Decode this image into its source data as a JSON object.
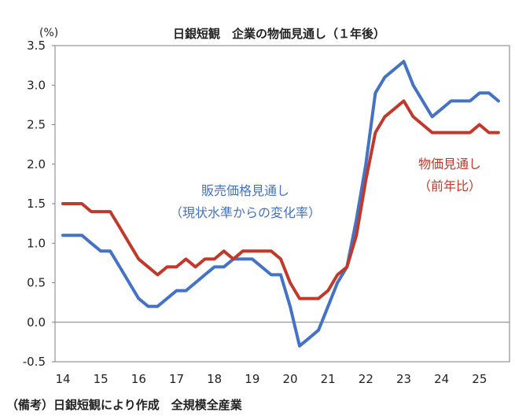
{
  "chart_data": {
    "type": "line",
    "title": "日銀短観　企業の物価見通し（１年後）",
    "unit_label": "(%)",
    "ylim": [
      -0.5,
      3.5
    ],
    "xlim": [
      2014,
      2026
    ],
    "y_ticks": [
      "3.5",
      "3.0",
      "2.5",
      "2.0",
      "1.5",
      "1.0",
      "0.5",
      "0.0",
      "-0.5"
    ],
    "x_ticks": [
      "14",
      "15",
      "16",
      "17",
      "18",
      "19",
      "20",
      "21",
      "22",
      "23",
      "24",
      "25"
    ],
    "grid": false,
    "zero_line": true,
    "series": [
      {
        "name": "販売価格見通し（現状水準からの変化率）",
        "color": "#4472C4",
        "x": [
          "2014Q1",
          "2014Q2",
          "2014Q3",
          "2014Q4",
          "2015Q1",
          "2015Q2",
          "2015Q3",
          "2015Q4",
          "2016Q1",
          "2016Q2",
          "2016Q3",
          "2016Q4",
          "2017Q1",
          "2017Q2",
          "2017Q3",
          "2017Q4",
          "2018Q1",
          "2018Q2",
          "2018Q3",
          "2018Q4",
          "2019Q1",
          "2019Q2",
          "2019Q3",
          "2019Q4",
          "2020Q1",
          "2020Q2",
          "2020Q3",
          "2020Q4",
          "2021Q1",
          "2021Q2",
          "2021Q3",
          "2021Q4",
          "2022Q1",
          "2022Q2",
          "2022Q3",
          "2022Q4",
          "2023Q1",
          "2023Q2",
          "2023Q3",
          "2023Q4",
          "2024Q1",
          "2024Q2",
          "2024Q3",
          "2024Q4",
          "2025Q1",
          "2025Q2",
          "2025Q3"
        ],
        "values": [
          1.1,
          1.1,
          1.1,
          1.0,
          0.9,
          0.9,
          0.7,
          0.5,
          0.3,
          0.2,
          0.2,
          0.3,
          0.4,
          0.4,
          0.5,
          0.6,
          0.7,
          0.7,
          0.8,
          0.8,
          0.8,
          0.7,
          0.6,
          0.6,
          0.2,
          -0.3,
          -0.2,
          -0.1,
          0.2,
          0.5,
          0.7,
          1.3,
          2.0,
          2.9,
          3.1,
          3.2,
          3.3,
          3.0,
          2.8,
          2.6,
          2.7,
          2.8,
          2.8,
          2.8,
          2.9,
          2.9,
          2.8
        ]
      },
      {
        "name": "物価見通し（前年比）",
        "color": "#C0392B",
        "x": [
          "2014Q1",
          "2014Q2",
          "2014Q3",
          "2014Q4",
          "2015Q1",
          "2015Q2",
          "2015Q3",
          "2015Q4",
          "2016Q1",
          "2016Q2",
          "2016Q3",
          "2016Q4",
          "2017Q1",
          "2017Q2",
          "2017Q3",
          "2017Q4",
          "2018Q1",
          "2018Q2",
          "2018Q3",
          "2018Q4",
          "2019Q1",
          "2019Q2",
          "2019Q3",
          "2019Q4",
          "2020Q1",
          "2020Q2",
          "2020Q3",
          "2020Q4",
          "2021Q1",
          "2021Q2",
          "2021Q3",
          "2021Q4",
          "2022Q1",
          "2022Q2",
          "2022Q3",
          "2022Q4",
          "2023Q1",
          "2023Q2",
          "2023Q3",
          "2023Q4",
          "2024Q1",
          "2024Q2",
          "2024Q3",
          "2024Q4",
          "2025Q1",
          "2025Q2",
          "2025Q3"
        ],
        "values": [
          1.5,
          1.5,
          1.5,
          1.4,
          1.4,
          1.4,
          1.2,
          1.0,
          0.8,
          0.7,
          0.6,
          0.7,
          0.7,
          0.8,
          0.7,
          0.8,
          0.8,
          0.9,
          0.8,
          0.9,
          0.9,
          0.9,
          0.9,
          0.8,
          0.5,
          0.3,
          0.3,
          0.3,
          0.4,
          0.6,
          0.7,
          1.1,
          1.8,
          2.4,
          2.6,
          2.7,
          2.8,
          2.6,
          2.5,
          2.4,
          2.4,
          2.4,
          2.4,
          2.4,
          2.5,
          2.4,
          2.4
        ]
      }
    ],
    "annotations": {
      "blue_line1": "販売価格見通し",
      "blue_line2": "（現状水準からの変化率）",
      "red_line1": "物価見通し",
      "red_line2": "（前年比）"
    }
  },
  "footnote": "（備考）日銀短観により作成　全規模全産業"
}
